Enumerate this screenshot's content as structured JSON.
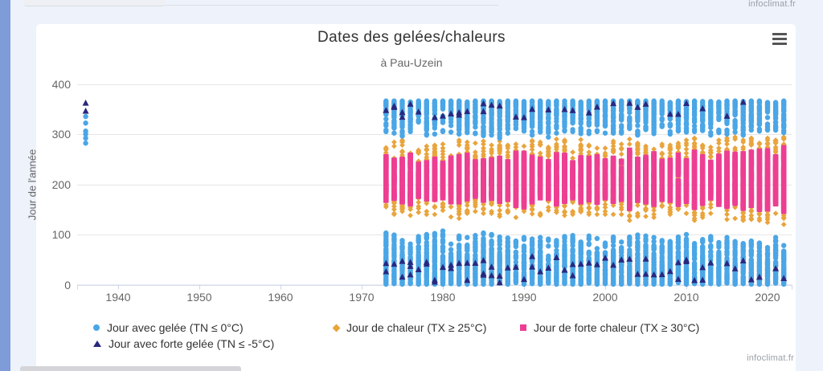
{
  "page": {
    "watermark_top": "infoclimat.fr",
    "watermark_bottom": "infoclimat.fr"
  },
  "chart": {
    "title": "Dates des gelées/chaleurs",
    "subtitle": "à Pau-Uzein"
  },
  "legend": {
    "items": [
      {
        "label": "Jour avec gelée (TN ≤ 0°C)",
        "marker": "circle",
        "color": "#4AA6E6"
      },
      {
        "label": "Jour de chaleur (TX ≥ 25°C)",
        "marker": "diamond",
        "color": "#E9A43C"
      },
      {
        "label": "Jour de forte chaleur (TX ≥ 30°C)",
        "marker": "square",
        "color": "#ED3E92"
      },
      {
        "label": "Jour avec forte gelée (TN ≤ -5°C)",
        "marker": "triangle",
        "color": "#28287E"
      }
    ]
  },
  "chart_data": {
    "type": "scatter",
    "title": "Dates des gelées/chaleurs",
    "subtitle": "à Pau-Uzein",
    "xlabel": "",
    "ylabel": "Jour de l'année",
    "ylim": [
      0,
      400
    ],
    "yticks": [
      0,
      100,
      200,
      300,
      400
    ],
    "xticks": [
      1940,
      1950,
      1960,
      1970,
      1980,
      1990,
      2000,
      2010,
      2020
    ],
    "grid": true,
    "legend_position": "bottom",
    "series": [
      {
        "name": "Jour avec gelée (TN ≤ 0°C)",
        "marker": "circle",
        "color": "#4AA6E6"
      },
      {
        "name": "Jour de chaleur (TX ≥ 25°C)",
        "marker": "diamond",
        "color": "#E9A43C"
      },
      {
        "name": "Jour de forte chaleur (TX ≥ 30°C)",
        "marker": "square",
        "color": "#ED3E92"
      },
      {
        "name": "Jour avec forte gelée (TN ≤ -5°C)",
        "marker": "triangle",
        "color": "#28287E"
      }
    ],
    "isolated_cluster": {
      "year": 1936,
      "frost_days": [
        282,
        292,
        300,
        306,
        322,
        335
      ],
      "strong_frost_days": [
        346,
        362
      ]
    },
    "years_columns_format": [
      "year",
      "last_spring_frost_day",
      "first_autumn_frost_day",
      "heat_start_day",
      "heat_end_day",
      "strong_heat_start_day",
      "strong_heat_end_day",
      "strong_frost_count_winter",
      "strong_frost_count_autumn"
    ],
    "years": [
      [
        1973,
        112,
        300,
        135,
        290,
        168,
        255,
        2,
        1
      ],
      [
        1974,
        105,
        295,
        140,
        285,
        172,
        248,
        1,
        2
      ],
      [
        1975,
        95,
        290,
        138,
        288,
        165,
        250,
        2,
        2
      ],
      [
        1976,
        100,
        298,
        130,
        292,
        160,
        258,
        3,
        1
      ],
      [
        1977,
        98,
        302,
        142,
        280,
        175,
        240,
        1,
        1
      ],
      [
        1978,
        108,
        295,
        140,
        282,
        170,
        245,
        2,
        0
      ],
      [
        1979,
        102,
        300,
        138,
        285,
        168,
        250,
        2,
        1
      ],
      [
        1980,
        110,
        305,
        140,
        280,
        172,
        242,
        1,
        1
      ],
      [
        1981,
        95,
        298,
        135,
        288,
        165,
        252,
        2,
        1
      ],
      [
        1982,
        100,
        295,
        132,
        290,
        162,
        255,
        1,
        2
      ],
      [
        1983,
        105,
        300,
        138,
        292,
        170,
        260,
        2,
        1
      ],
      [
        1984,
        98,
        296,
        142,
        282,
        175,
        245,
        1,
        0
      ],
      [
        1985,
        110,
        294,
        138,
        286,
        168,
        248,
        3,
        2
      ],
      [
        1986,
        104,
        298,
        140,
        284,
        172,
        250,
        2,
        1
      ],
      [
        1987,
        100,
        292,
        136,
        288,
        166,
        252,
        2,
        1
      ],
      [
        1988,
        96,
        300,
        140,
        285,
        170,
        246,
        1,
        0
      ],
      [
        1989,
        90,
        304,
        130,
        292,
        158,
        262,
        1,
        1
      ],
      [
        1990,
        94,
        300,
        128,
        294,
        155,
        264,
        1,
        1
      ],
      [
        1991,
        100,
        296,
        135,
        290,
        165,
        255,
        2,
        1
      ],
      [
        1992,
        98,
        298,
        138,
        286,
        170,
        250,
        1,
        0
      ],
      [
        1993,
        95,
        294,
        140,
        284,
        172,
        246,
        1,
        1
      ],
      [
        1994,
        92,
        300,
        130,
        290,
        160,
        260,
        1,
        0
      ],
      [
        1995,
        96,
        302,
        132,
        292,
        162,
        258,
        1,
        1
      ],
      [
        1996,
        102,
        296,
        140,
        282,
        172,
        244,
        2,
        1
      ],
      [
        1997,
        88,
        300,
        135,
        290,
        165,
        255,
        1,
        0
      ],
      [
        1998,
        98,
        298,
        136,
        288,
        168,
        252,
        1,
        1
      ],
      [
        1999,
        94,
        302,
        134,
        290,
        164,
        256,
        1,
        1
      ],
      [
        2000,
        90,
        300,
        138,
        286,
        170,
        248,
        1,
        0
      ],
      [
        2001,
        96,
        298,
        136,
        288,
        166,
        252,
        1,
        1
      ],
      [
        2002,
        92,
        300,
        138,
        284,
        170,
        246,
        1,
        0
      ],
      [
        2003,
        95,
        304,
        128,
        296,
        152,
        268,
        1,
        1
      ],
      [
        2004,
        100,
        298,
        136,
        288,
        168,
        250,
        1,
        1
      ],
      [
        2005,
        98,
        296,
        134,
        290,
        164,
        254,
        2,
        1
      ],
      [
        2006,
        94,
        300,
        130,
        292,
        158,
        262,
        1,
        0
      ],
      [
        2007,
        90,
        298,
        138,
        284,
        170,
        246,
        1,
        0
      ],
      [
        2008,
        96,
        300,
        136,
        286,
        168,
        248,
        1,
        1
      ],
      [
        2009,
        98,
        302,
        132,
        290,
        160,
        258,
        2,
        1
      ],
      [
        2010,
        100,
        296,
        134,
        288,
        164,
        252,
        2,
        1
      ],
      [
        2011,
        85,
        304,
        126,
        294,
        154,
        264,
        1,
        0
      ],
      [
        2012,
        92,
        300,
        132,
        290,
        162,
        256,
        2,
        1
      ],
      [
        2013,
        98,
        298,
        138,
        284,
        172,
        244,
        1,
        0
      ],
      [
        2014,
        88,
        302,
        130,
        290,
        160,
        256,
        0,
        0
      ],
      [
        2015,
        94,
        300,
        128,
        292,
        156,
        262,
        1,
        1
      ],
      [
        2016,
        90,
        304,
        132,
        294,
        162,
        260,
        1,
        0
      ],
      [
        2017,
        96,
        298,
        126,
        292,
        152,
        262,
        1,
        1
      ],
      [
        2018,
        92,
        302,
        130,
        294,
        158,
        264,
        1,
        0
      ],
      [
        2019,
        88,
        300,
        126,
        296,
        150,
        266,
        1,
        0
      ],
      [
        2020,
        85,
        304,
        124,
        296,
        150,
        268,
        0,
        0
      ],
      [
        2021,
        94,
        298,
        130,
        292,
        160,
        258,
        1,
        0
      ],
      [
        2022,
        80,
        302,
        120,
        300,
        145,
        275,
        1,
        0
      ]
    ]
  }
}
